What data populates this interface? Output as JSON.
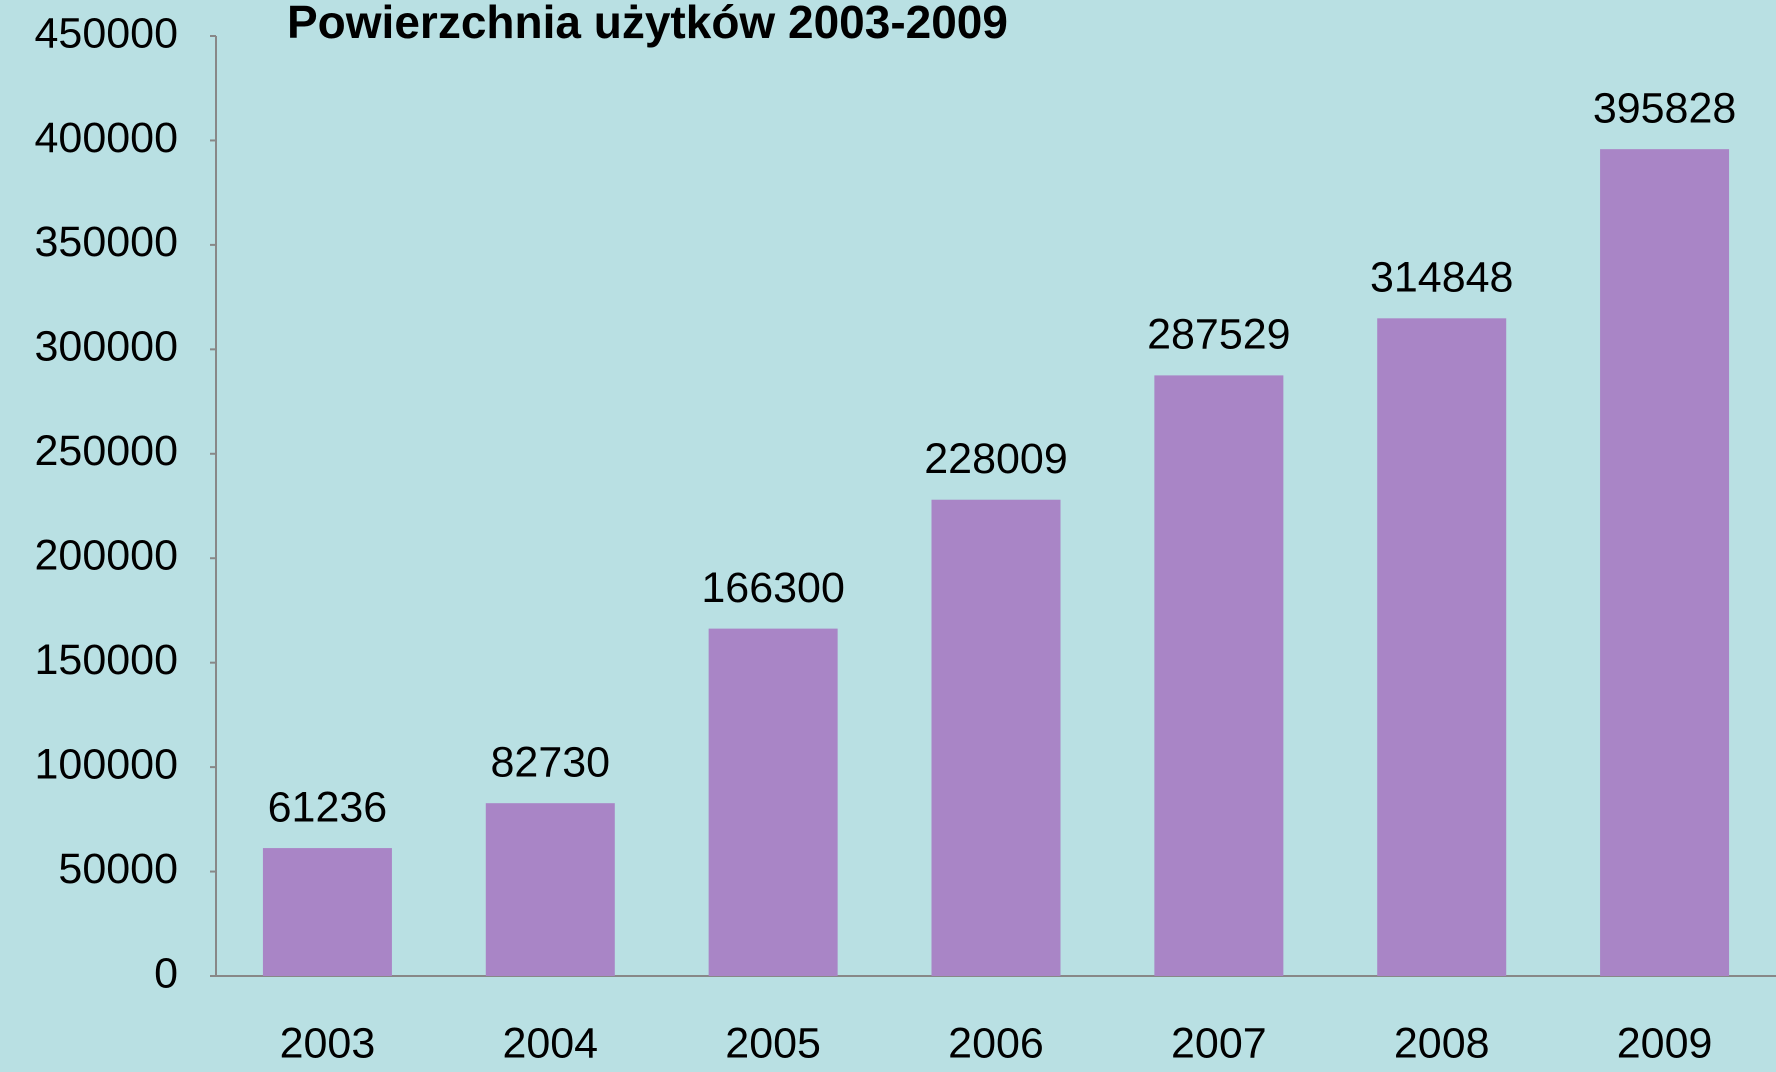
{
  "chart_data": {
    "type": "bar",
    "title": "Powierzchnia użytków 2003-2009",
    "categories": [
      "2003",
      "2004",
      "2005",
      "2006",
      "2007",
      "2008",
      "2009"
    ],
    "values": [
      61236,
      82730,
      166300,
      228009,
      287529,
      314848,
      395828
    ],
    "color": "#a985c6",
    "ylim": [
      0,
      450000
    ],
    "yticks": [
      0,
      50000,
      100000,
      150000,
      200000,
      250000,
      300000,
      350000,
      400000,
      450000
    ],
    "grid": false
  }
}
